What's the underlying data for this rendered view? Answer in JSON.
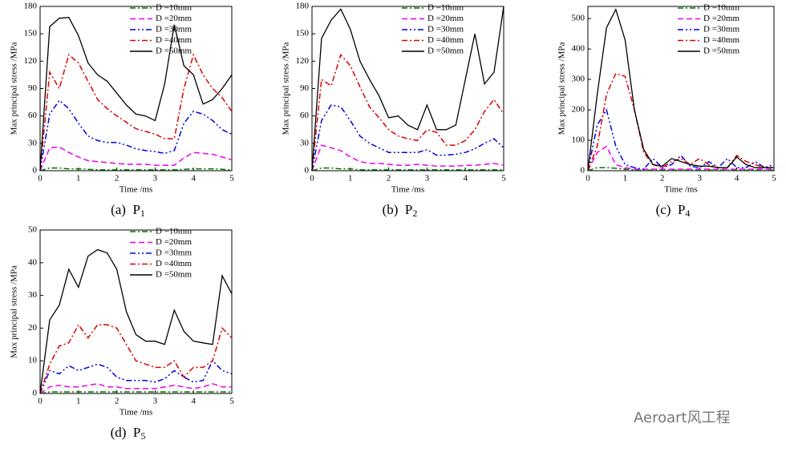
{
  "chart_data": [
    {
      "type": "line",
      "caption_letter": "(a)",
      "caption_name": "P",
      "caption_sub": "1",
      "xlabel": "Time /ms",
      "ylabel": "Max principal stress /MPa",
      "x": [
        0,
        0.25,
        0.5,
        0.75,
        1,
        1.25,
        1.5,
        1.75,
        2,
        2.25,
        2.5,
        2.75,
        3,
        3.25,
        3.5,
        3.75,
        4,
        4.25,
        4.5,
        4.75,
        5
      ],
      "xlim": [
        0,
        5
      ],
      "xticks": [
        0,
        1,
        2,
        3,
        4,
        5
      ],
      "ylim": [
        0,
        180
      ],
      "yticks": [
        0,
        30,
        60,
        90,
        120,
        150,
        180
      ],
      "series": [
        {
          "name": "D =10mm",
          "color": "#007700",
          "style": "dashdot",
          "values": [
            0,
            3,
            3,
            2,
            2,
            1.5,
            1,
            1,
            1,
            1,
            1,
            1,
            1,
            1,
            1,
            1.5,
            2,
            2,
            2,
            1.5,
            1
          ]
        },
        {
          "name": "D =20mm",
          "color": "#ee00ee",
          "style": "dashed",
          "values": [
            0,
            25,
            26,
            20,
            15,
            11,
            10,
            9,
            8,
            7,
            7,
            7,
            6,
            6,
            6,
            14,
            20,
            19,
            18,
            15,
            12
          ]
        },
        {
          "name": "D =30mm",
          "color": "#0000dd",
          "style": "dashdotdot",
          "values": [
            0,
            62,
            77,
            68,
            52,
            38,
            33,
            31,
            31,
            28,
            24,
            22,
            21,
            19,
            22,
            52,
            65,
            62,
            55,
            45,
            40
          ]
        },
        {
          "name": "D =40mm",
          "color": "#dd0000",
          "style": "dashdot",
          "values": [
            0,
            108,
            90,
            127,
            118,
            98,
            78,
            68,
            60,
            53,
            46,
            43,
            40,
            35,
            35,
            90,
            127,
            105,
            90,
            80,
            65
          ]
        },
        {
          "name": "D =50mm",
          "color": "#000000",
          "style": "solid",
          "values": [
            0,
            158,
            167,
            168,
            148,
            118,
            105,
            98,
            85,
            72,
            62,
            60,
            55,
            95,
            160,
            115,
            105,
            73,
            78,
            90,
            105
          ]
        }
      ]
    },
    {
      "type": "line",
      "caption_letter": "(b)",
      "caption_name": "P",
      "caption_sub": "2",
      "xlabel": "Time /ms",
      "ylabel": "Max principal stress /MPa",
      "x": [
        0,
        0.25,
        0.5,
        0.75,
        1,
        1.25,
        1.5,
        1.75,
        2,
        2.25,
        2.5,
        2.75,
        3,
        3.25,
        3.5,
        3.75,
        4,
        4.25,
        4.5,
        4.75,
        5
      ],
      "xlim": [
        0,
        5
      ],
      "xticks": [
        0,
        1,
        2,
        3,
        4,
        5
      ],
      "ylim": [
        0,
        180
      ],
      "yticks": [
        0,
        30,
        60,
        90,
        120,
        150,
        180
      ],
      "series": [
        {
          "name": "D =10mm",
          "color": "#007700",
          "style": "dashdot",
          "values": [
            0,
            3,
            3,
            2,
            2,
            1,
            1,
            1,
            1,
            1,
            1,
            1,
            1,
            1,
            1,
            1,
            1,
            1,
            1,
            1,
            1
          ]
        },
        {
          "name": "D =20mm",
          "color": "#ee00ee",
          "style": "dashed",
          "values": [
            0,
            28,
            25,
            22,
            15,
            10,
            8,
            8,
            7,
            6,
            6,
            7,
            6,
            5,
            5,
            5,
            6,
            6,
            7,
            8,
            6
          ]
        },
        {
          "name": "D =30mm",
          "color": "#0000dd",
          "style": "dashdotdot",
          "values": [
            0,
            55,
            72,
            70,
            55,
            38,
            30,
            25,
            20,
            20,
            20,
            20,
            23,
            17,
            17,
            18,
            20,
            24,
            30,
            35,
            25
          ]
        },
        {
          "name": "D =40mm",
          "color": "#dd0000",
          "style": "dashdot",
          "values": [
            0,
            100,
            93,
            127,
            115,
            92,
            70,
            58,
            45,
            38,
            35,
            33,
            45,
            42,
            28,
            28,
            33,
            45,
            65,
            78,
            62
          ]
        },
        {
          "name": "D =50mm",
          "color": "#000000",
          "style": "solid",
          "values": [
            0,
            145,
            165,
            177,
            155,
            120,
            100,
            82,
            58,
            60,
            50,
            45,
            72,
            45,
            45,
            50,
            100,
            150,
            95,
            108,
            180
          ]
        }
      ]
    },
    {
      "type": "line",
      "caption_letter": "(c)",
      "caption_name": "P",
      "caption_sub": "4",
      "xlabel": "Time /ms",
      "ylabel": "Max principal stress /MPa",
      "x": [
        0,
        0.25,
        0.5,
        0.75,
        1,
        1.25,
        1.5,
        1.75,
        2,
        2.25,
        2.5,
        2.75,
        3,
        3.25,
        3.5,
        3.75,
        4,
        4.25,
        4.5,
        4.75,
        5
      ],
      "xlim": [
        0,
        5
      ],
      "xticks": [
        0,
        1,
        2,
        3,
        4,
        5
      ],
      "ylim": [
        0,
        540
      ],
      "yticks": [
        0,
        100,
        200,
        300,
        400,
        500
      ],
      "series": [
        {
          "name": "D =10mm",
          "color": "#007700",
          "style": "dashdot",
          "values": [
            0,
            10,
            10,
            8,
            5,
            3,
            2,
            2,
            2,
            2,
            2,
            2,
            2,
            2,
            2,
            2,
            2,
            2,
            2,
            2,
            2
          ]
        },
        {
          "name": "D =20mm",
          "color": "#ee00ee",
          "style": "dashed",
          "values": [
            0,
            60,
            80,
            20,
            10,
            5,
            5,
            5,
            5,
            5,
            5,
            5,
            5,
            5,
            5,
            5,
            5,
            5,
            5,
            5,
            5
          ]
        },
        {
          "name": "D =30mm",
          "color": "#0000dd",
          "style": "dashdotdot",
          "values": [
            0,
            150,
            200,
            80,
            20,
            10,
            5,
            40,
            10,
            20,
            50,
            15,
            10,
            30,
            10,
            40,
            10,
            10,
            30,
            10,
            20
          ]
        },
        {
          "name": "D =40mm",
          "color": "#dd0000",
          "style": "dashdot",
          "values": [
            0,
            80,
            250,
            320,
            310,
            200,
            60,
            20,
            10,
            30,
            40,
            20,
            40,
            20,
            10,
            10,
            50,
            30,
            20,
            10,
            10
          ]
        },
        {
          "name": "D =50mm",
          "color": "#000000",
          "style": "solid",
          "values": [
            0,
            250,
            470,
            530,
            430,
            200,
            70,
            20,
            15,
            40,
            30,
            20,
            15,
            15,
            10,
            10,
            45,
            20,
            10,
            10,
            10
          ]
        }
      ]
    },
    {
      "type": "line",
      "caption_letter": "(d)",
      "caption_name": "P",
      "caption_sub": "5",
      "xlabel": "Time /ms",
      "ylabel": "Max principal stress /MPa",
      "x": [
        0,
        0.25,
        0.5,
        0.75,
        1,
        1.25,
        1.5,
        1.75,
        2,
        2.25,
        2.5,
        2.75,
        3,
        3.25,
        3.5,
        3.75,
        4,
        4.25,
        4.5,
        4.75,
        5
      ],
      "xlim": [
        0,
        5
      ],
      "xticks": [
        0,
        1,
        2,
        3,
        4,
        5
      ],
      "ylim": [
        0,
        50
      ],
      "yticks": [
        0,
        10,
        20,
        30,
        40,
        50
      ],
      "series": [
        {
          "name": "D =10mm",
          "color": "#007700",
          "style": "dashdot",
          "values": [
            0,
            0.5,
            0.5,
            0.5,
            0.5,
            0.5,
            0.5,
            0.5,
            0.5,
            0.5,
            0.5,
            0.5,
            0.5,
            0.5,
            0.5,
            0.5,
            0.5,
            0.5,
            0.5,
            0.5,
            0.5
          ]
        },
        {
          "name": "D =20mm",
          "color": "#ee00ee",
          "style": "dashed",
          "values": [
            0,
            2,
            2.5,
            2,
            2,
            2.5,
            3,
            2,
            2,
            1.5,
            1.5,
            1.5,
            1.5,
            2,
            2.5,
            2,
            1.5,
            2,
            3,
            2,
            2
          ]
        },
        {
          "name": "D =30mm",
          "color": "#0000dd",
          "style": "dashdotdot",
          "values": [
            0,
            7,
            6,
            8.5,
            7,
            8,
            9,
            8,
            5,
            4,
            4,
            4,
            3.5,
            4.5,
            7,
            5,
            3.5,
            4,
            10,
            7,
            6
          ]
        },
        {
          "name": "D =40mm",
          "color": "#dd0000",
          "style": "dashdot",
          "values": [
            0,
            9,
            14.5,
            15.5,
            21,
            17,
            21,
            21,
            20,
            15,
            10,
            9,
            8,
            8,
            10,
            5,
            8,
            8,
            10,
            20,
            17
          ]
        },
        {
          "name": "D =50mm",
          "color": "#000000",
          "style": "solid",
          "values": [
            0,
            22.5,
            27,
            38,
            32.5,
            42,
            44,
            43,
            38,
            25,
            18,
            16,
            16,
            15,
            25.5,
            19,
            16,
            15.5,
            15,
            36,
            30.5
          ]
        }
      ]
    }
  ],
  "watermark": "Aeroart风工程"
}
